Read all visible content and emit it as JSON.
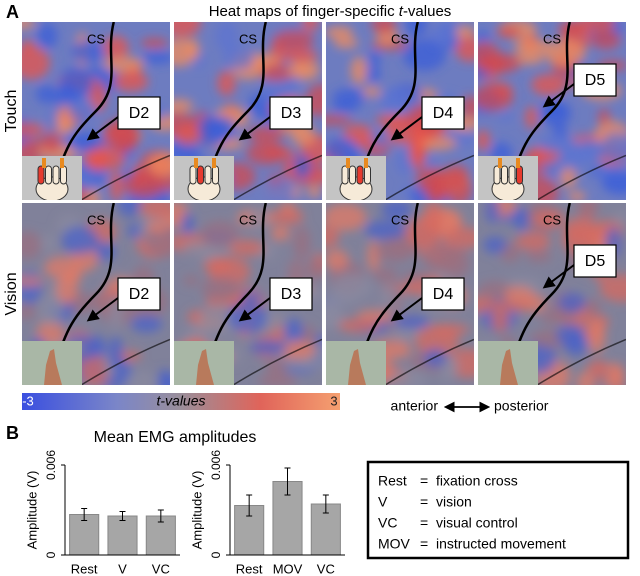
{
  "panel_a": {
    "label": "A",
    "title_start": "Heat maps of finger-specific ",
    "title_italic": "t",
    "title_end": "-values",
    "rows": [
      "Touch",
      "Vision"
    ],
    "digits": [
      "D2",
      "D3",
      "D4",
      "D5"
    ],
    "sulcus_label": "CS",
    "colorbar": {
      "label": "t-values",
      "lim": [
        -3,
        3
      ],
      "ticks": [
        -3,
        3
      ]
    },
    "direction": [
      "anterior",
      "posterior"
    ]
  },
  "panel_b": {
    "label": "B",
    "title": "Mean EMG amplitudes",
    "legend": [
      [
        "Rest",
        "fixation cross"
      ],
      [
        "V",
        "vision"
      ],
      [
        "VC",
        "visual control"
      ],
      [
        "MOV",
        "instructed movement"
      ]
    ],
    "separator": "="
  },
  "chart_data": [
    {
      "type": "bar",
      "ylabel": "Amplitude (V)",
      "categories": [
        "Rest",
        "V",
        "VC"
      ],
      "values": [
        0.0027,
        0.0026,
        0.0026
      ],
      "errors": [
        0.0004,
        0.0003,
        0.0004
      ],
      "color": "#a6a6a6",
      "ylim": [
        0,
        0.006
      ],
      "yticks": [
        0,
        0.006
      ]
    },
    {
      "type": "bar",
      "ylabel": "Amplitude (V)",
      "categories": [
        "Rest",
        "MOV",
        "VC"
      ],
      "values": [
        0.0033,
        0.0049,
        0.0034
      ],
      "errors": [
        0.0007,
        0.0009,
        0.0006
      ],
      "color": "#a6a6a6",
      "ylim": [
        0,
        0.006
      ],
      "yticks": [
        0,
        0.006
      ]
    }
  ]
}
